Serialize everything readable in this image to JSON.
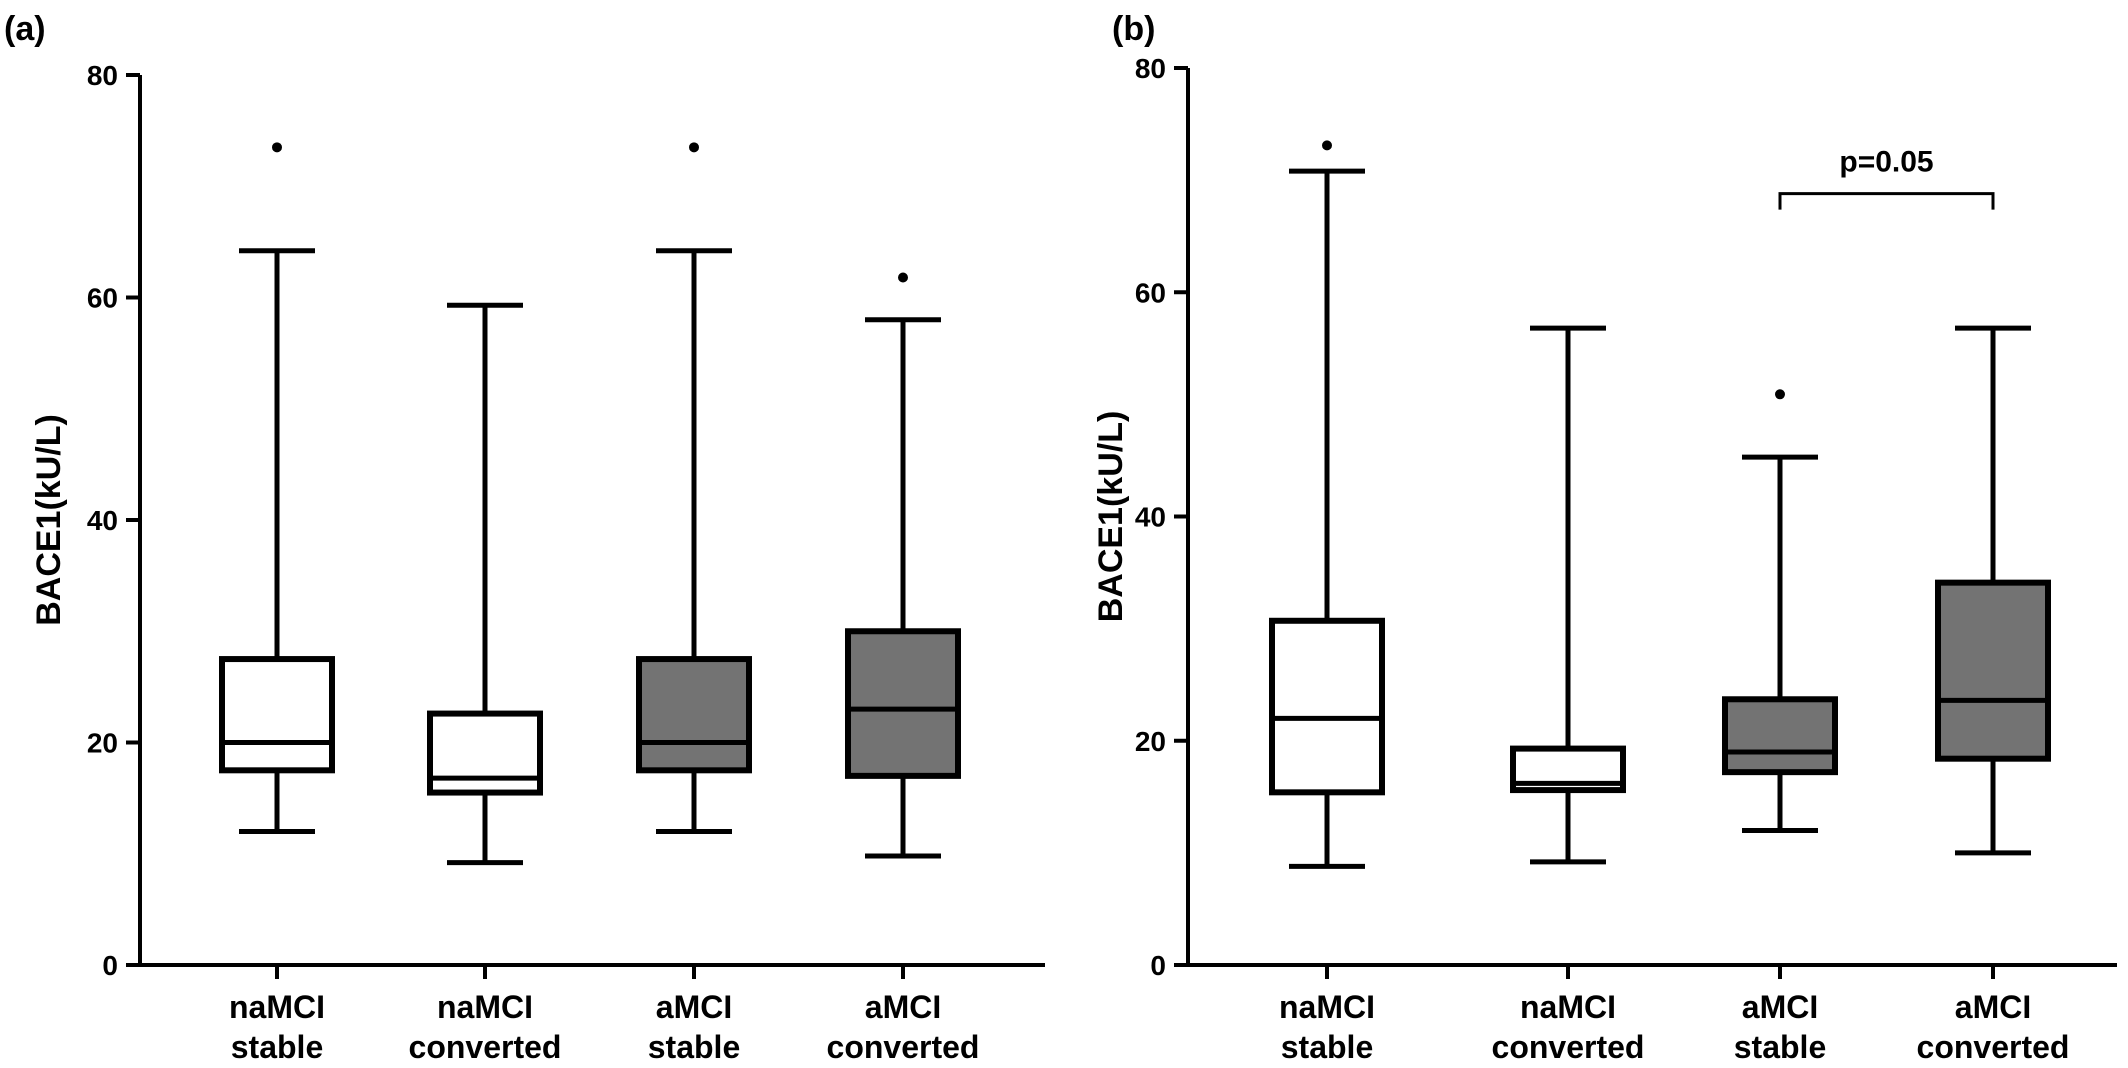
{
  "chart_data": [
    {
      "panel_label": "(a)",
      "type": "boxplot",
      "ylabel": "BACE1(kU/L)",
      "ylim": [
        0,
        80
      ],
      "yticks": [
        0,
        20,
        40,
        60,
        80
      ],
      "categories": [
        {
          "line1": "naMCI",
          "line2": "stable"
        },
        {
          "line1": "naMCI",
          "line2": "converted"
        },
        {
          "line1": "aMCI",
          "line2": "stable"
        },
        {
          "line1": "aMCI",
          "line2": "converted"
        }
      ],
      "boxes": [
        {
          "whisker_low": 12,
          "q1": 17.5,
          "median": 20,
          "q3": 27.5,
          "whisker_high": 64.2,
          "outliers": [
            73.5
          ],
          "fill": "#ffffff"
        },
        {
          "whisker_low": 9.2,
          "q1": 15.5,
          "median": 16.8,
          "q3": 22.6,
          "whisker_high": 59.3,
          "outliers": [],
          "fill": "#ffffff"
        },
        {
          "whisker_low": 12,
          "q1": 17.5,
          "median": 20,
          "q3": 27.5,
          "whisker_high": 64.2,
          "outliers": [
            73.5
          ],
          "fill": "#737373"
        },
        {
          "whisker_low": 9.8,
          "q1": 17,
          "median": 23,
          "q3": 30,
          "whisker_high": 58,
          "outliers": [
            61.8
          ],
          "fill": "#737373"
        }
      ],
      "annotations": []
    },
    {
      "panel_label": "(b)",
      "type": "boxplot",
      "ylabel": "BACE1(kU/L)",
      "ylim": [
        0,
        80
      ],
      "yticks": [
        0,
        20,
        40,
        60,
        80
      ],
      "categories": [
        {
          "line1": "naMCI",
          "line2": "stable"
        },
        {
          "line1": "naMCI",
          "line2": "converted"
        },
        {
          "line1": "aMCI",
          "line2": "stable"
        },
        {
          "line1": "aMCI",
          "line2": "converted"
        }
      ],
      "boxes": [
        {
          "whisker_low": 8.8,
          "q1": 15.4,
          "median": 22,
          "q3": 30.7,
          "whisker_high": 70.8,
          "outliers": [
            73.1
          ],
          "fill": "#ffffff"
        },
        {
          "whisker_low": 9.2,
          "q1": 15.6,
          "median": 16.2,
          "q3": 19.3,
          "whisker_high": 56.8,
          "outliers": [],
          "fill": "#ffffff"
        },
        {
          "whisker_low": 12,
          "q1": 17.2,
          "median": 19,
          "q3": 23.7,
          "whisker_high": 45.3,
          "outliers": [
            50.9
          ],
          "fill": "#737373"
        },
        {
          "whisker_low": 10,
          "q1": 18.4,
          "median": 23.6,
          "q3": 34.1,
          "whisker_high": 56.8,
          "outliers": [],
          "fill": "#737373"
        }
      ],
      "annotations": [
        {
          "text": "p=0.05",
          "from": 2,
          "to": 3,
          "y": 68.8
        }
      ]
    }
  ]
}
